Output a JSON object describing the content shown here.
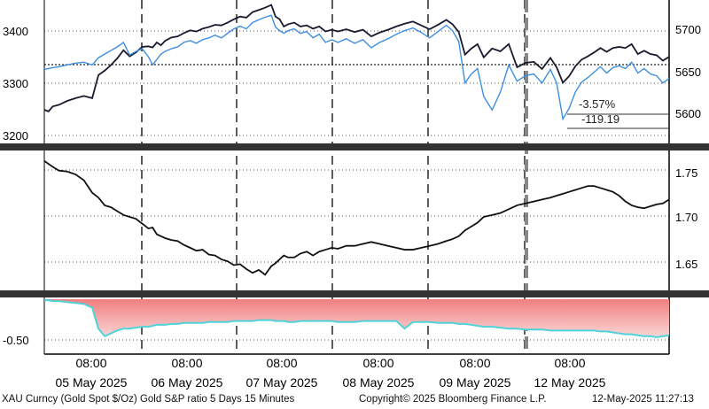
{
  "chart_data": [
    {
      "type": "line",
      "panel": "top",
      "y_left_ticks": [
        "3400",
        "3300",
        "3200"
      ],
      "y_right_ticks": [
        "5700",
        "5650",
        "5600"
      ],
      "ylim_left": [
        3180,
        3440
      ],
      "ylim_right": [
        5573,
        5732
      ],
      "series": [
        {
          "name": "XAU Curncy (Gold Spot $/Oz)",
          "axis": "left",
          "color": "#1a1a2e",
          "x": [
            0,
            4,
            8,
            14,
            22,
            30,
            38,
            46,
            52,
            58,
            64,
            70,
            76,
            82,
            88,
            94,
            100,
            104,
            108,
            112,
            116,
            122,
            128,
            134,
            140,
            146,
            152,
            158,
            164,
            170,
            176,
            182,
            188,
            194,
            200,
            206,
            212,
            218,
            222,
            226,
            230,
            234,
            240,
            246,
            252,
            258,
            264,
            270,
            276,
            282,
            290,
            298,
            306,
            314,
            322,
            330,
            338,
            346,
            354,
            362,
            370,
            378,
            386,
            392,
            398,
            404,
            410,
            416,
            422,
            430,
            438,
            446,
            454,
            462,
            470,
            478,
            486,
            492,
            498,
            504,
            510,
            516,
            522,
            528,
            534,
            540,
            546,
            552,
            558,
            564,
            570,
            576,
            582,
            588,
            594,
            600
          ],
          "y": [
            3241,
            3238,
            3247,
            3250,
            3257,
            3262,
            3266,
            3262,
            3304,
            3312,
            3322,
            3334,
            3349,
            3338,
            3345,
            3355,
            3356,
            3354,
            3363,
            3358,
            3366,
            3372,
            3374,
            3380,
            3385,
            3383,
            3388,
            3391,
            3395,
            3394,
            3399,
            3405,
            3410,
            3408,
            3418,
            3422,
            3426,
            3431,
            3410,
            3405,
            3392,
            3396,
            3399,
            3392,
            3394,
            3388,
            3392,
            3383,
            3386,
            3383,
            3387,
            3382,
            3386,
            3374,
            3381,
            3386,
            3392,
            3397,
            3401,
            3394,
            3387,
            3395,
            3404,
            3396,
            3382,
            3341,
            3352,
            3360,
            3336,
            3352,
            3347,
            3360,
            3318,
            3326,
            3328,
            3315,
            3335,
            3318,
            3290,
            3302,
            3320,
            3332,
            3338,
            3345,
            3353,
            3346,
            3353,
            3355,
            3353,
            3360,
            3342,
            3348,
            3342,
            3340,
            3330,
            3337
          ]
        },
        {
          "name": "S&P",
          "axis": "right",
          "color": "#3d8fe0",
          "x": [
            0,
            4,
            8,
            14,
            22,
            30,
            38,
            46,
            52,
            58,
            64,
            70,
            76,
            82,
            88,
            94,
            100,
            104,
            108,
            112,
            116,
            122,
            128,
            134,
            140,
            146,
            152,
            158,
            164,
            170,
            176,
            182,
            188,
            194,
            200,
            206,
            212,
            218,
            222,
            226,
            230,
            234,
            240,
            246,
            252,
            258,
            264,
            270,
            276,
            282,
            290,
            298,
            306,
            314,
            322,
            330,
            338,
            346,
            354,
            362,
            370,
            378,
            386,
            392,
            398,
            404,
            410,
            416,
            422,
            430,
            438,
            446,
            454,
            462,
            470,
            478,
            486,
            492,
            498,
            504,
            510,
            516,
            522,
            528,
            534,
            540,
            546,
            552,
            558,
            564,
            570,
            576,
            582,
            588,
            594,
            600
          ],
          "y": [
            5655,
            5656,
            5657,
            5658,
            5660,
            5662,
            5663,
            5660,
            5668,
            5672,
            5676,
            5680,
            5685,
            5671,
            5675,
            5678,
            5669,
            5660,
            5666,
            5672,
            5675,
            5678,
            5680,
            5685,
            5687,
            5684,
            5688,
            5690,
            5693,
            5690,
            5695,
            5700,
            5703,
            5700,
            5707,
            5710,
            5713,
            5715,
            5702,
            5698,
            5695,
            5698,
            5700,
            5695,
            5697,
            5690,
            5694,
            5685,
            5688,
            5685,
            5689,
            5684,
            5688,
            5679,
            5685,
            5689,
            5694,
            5698,
            5701,
            5696,
            5690,
            5697,
            5704,
            5698,
            5686,
            5640,
            5650,
            5656,
            5625,
            5610,
            5630,
            5660,
            5642,
            5648,
            5650,
            5640,
            5655,
            5640,
            5600,
            5612,
            5630,
            5641,
            5646,
            5652,
            5658,
            5651,
            5657,
            5659,
            5656,
            5663,
            5651,
            5656,
            5650,
            5648,
            5640,
            5645
          ],
          "label_texts": [
            "-3.57%",
            "-119.19"
          ]
        }
      ]
    },
    {
      "type": "line",
      "panel": "middle",
      "name": "Gold S&P ratio 5 Days 15 Minutes",
      "y_right_ticks": [
        "1.75",
        "1.70",
        "1.65"
      ],
      "ylim": [
        1.622,
        1.767
      ],
      "x": [
        0,
        4,
        8,
        14,
        22,
        30,
        38,
        46,
        52,
        58,
        64,
        70,
        76,
        82,
        88,
        94,
        100,
        104,
        108,
        112,
        116,
        122,
        128,
        134,
        140,
        146,
        152,
        158,
        164,
        170,
        176,
        182,
        188,
        194,
        200,
        206,
        212,
        218,
        222,
        226,
        230,
        234,
        240,
        246,
        252,
        258,
        264,
        270,
        276,
        282,
        290,
        298,
        306,
        314,
        322,
        330,
        338,
        346,
        354,
        362,
        370,
        378,
        386,
        392,
        398,
        404,
        410,
        416,
        422,
        430,
        438,
        446,
        454,
        462,
        470,
        478,
        486,
        492,
        498,
        504,
        510,
        516,
        522,
        528,
        534,
        540,
        546,
        552,
        558,
        564,
        570,
        576,
        582,
        588,
        594,
        600
      ],
      "y": [
        1.758,
        1.755,
        1.752,
        1.748,
        1.747,
        1.744,
        1.738,
        1.725,
        1.72,
        1.712,
        1.71,
        1.706,
        1.702,
        1.7,
        1.698,
        1.693,
        1.688,
        1.689,
        1.682,
        1.68,
        1.678,
        1.676,
        1.675,
        1.671,
        1.668,
        1.665,
        1.666,
        1.661,
        1.66,
        1.656,
        1.654,
        1.65,
        1.651,
        1.646,
        1.642,
        1.645,
        1.64,
        1.649,
        1.652,
        1.656,
        1.66,
        1.658,
        1.658,
        1.662,
        1.664,
        1.66,
        1.664,
        1.666,
        1.668,
        1.667,
        1.67,
        1.67,
        1.672,
        1.674,
        1.672,
        1.67,
        1.668,
        1.666,
        1.666,
        1.668,
        1.67,
        1.672,
        1.675,
        1.677,
        1.68,
        1.686,
        1.69,
        1.694,
        1.7,
        1.702,
        1.704,
        1.708,
        1.712,
        1.714,
        1.716,
        1.718,
        1.72,
        1.722,
        1.724,
        1.726,
        1.728,
        1.73,
        1.732,
        1.732,
        1.73,
        1.728,
        1.726,
        1.722,
        1.716,
        1.712,
        1.71,
        1.709,
        1.711,
        1.713,
        1.714,
        1.718
      ]
    },
    {
      "type": "area",
      "panel": "bottom",
      "y_right_ticks": [
        "-0.50"
      ],
      "ylim": [
        -0.65,
        -0.09
      ],
      "fill_color": "#f6a3a3",
      "line_color": "#4fd3d8",
      "baseline": -0.09,
      "x": [
        0,
        4,
        8,
        14,
        22,
        30,
        38,
        46,
        52,
        58,
        64,
        70,
        76,
        82,
        88,
        94,
        100,
        104,
        108,
        112,
        116,
        122,
        128,
        134,
        140,
        146,
        152,
        158,
        164,
        170,
        176,
        182,
        188,
        194,
        200,
        206,
        212,
        218,
        222,
        226,
        230,
        234,
        240,
        246,
        252,
        258,
        264,
        270,
        276,
        282,
        290,
        298,
        306,
        314,
        322,
        330,
        338,
        346,
        354,
        362,
        370,
        378,
        386,
        392,
        398,
        404,
        410,
        416,
        422,
        430,
        438,
        446,
        454,
        462,
        470,
        478,
        486,
        492,
        498,
        504,
        510,
        516,
        522,
        528,
        534,
        540,
        546,
        552,
        558,
        564,
        570,
        576,
        582,
        588,
        594,
        600
      ],
      "y": [
        -0.1,
        -0.1,
        -0.11,
        -0.11,
        -0.12,
        -0.13,
        -0.14,
        -0.18,
        -0.4,
        -0.48,
        -0.45,
        -0.42,
        -0.4,
        -0.4,
        -0.39,
        -0.38,
        -0.38,
        -0.37,
        -0.36,
        -0.36,
        -0.36,
        -0.35,
        -0.35,
        -0.34,
        -0.34,
        -0.34,
        -0.34,
        -0.33,
        -0.33,
        -0.33,
        -0.33,
        -0.32,
        -0.32,
        -0.32,
        -0.32,
        -0.31,
        -0.31,
        -0.31,
        -0.32,
        -0.32,
        -0.32,
        -0.33,
        -0.33,
        -0.32,
        -0.32,
        -0.32,
        -0.32,
        -0.32,
        -0.32,
        -0.33,
        -0.33,
        -0.33,
        -0.32,
        -0.32,
        -0.32,
        -0.32,
        -0.32,
        -0.4,
        -0.33,
        -0.33,
        -0.33,
        -0.34,
        -0.34,
        -0.34,
        -0.35,
        -0.35,
        -0.36,
        -0.37,
        -0.38,
        -0.38,
        -0.39,
        -0.4,
        -0.4,
        -0.41,
        -0.41,
        -0.41,
        -0.42,
        -0.42,
        -0.42,
        -0.42,
        -0.42,
        -0.42,
        -0.42,
        -0.42,
        -0.43,
        -0.43,
        -0.44,
        -0.45,
        -0.46,
        -0.46,
        -0.47,
        -0.48,
        -0.48,
        -0.49,
        -0.48,
        -0.47
      ]
    }
  ],
  "x_axis": {
    "time_labels": [
      "08:00",
      "08:00",
      "08:00",
      "08:00",
      "08:00",
      "08:00"
    ],
    "date_labels": [
      "05 May 2025",
      "06 May 2025",
      "07 May 2025",
      "08 May 2025",
      "09 May 2025",
      "12 May 2025"
    ]
  },
  "footer": {
    "series_desc": "XAU Curncy (Gold Spot  $/Oz) Gold S&P ratio 5 Days 15 Minutes",
    "copyright": "Copyright© 2025 Bloomberg Finance L.P.",
    "timestamp": "12-May-2025 11:27:13"
  }
}
